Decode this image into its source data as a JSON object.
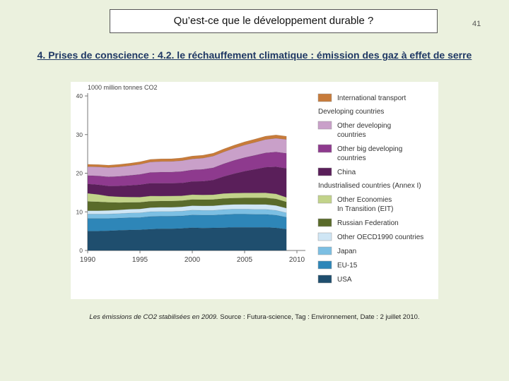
{
  "slide": {
    "title": "Qu’est-ce que le développement durable ?",
    "number": "41",
    "subtitle": "4. Prises de conscience : 4.2. le réchauffement climatique : émission des gaz à effet de serre",
    "caption_italic": "Les émissions de CO2 stabilisées en 2009.",
    "caption_source": " Source : Futura-science, Tag : Environnement, Date : 2 juillet 2010."
  },
  "chart_data": {
    "type": "area",
    "ylabel": "1000 million tonnes CO2",
    "ylim": [
      0,
      40
    ],
    "xlim": [
      1990,
      2010
    ],
    "yticks": [
      0,
      10,
      20,
      30,
      40
    ],
    "xticks": [
      1990,
      1995,
      2000,
      2005,
      2010
    ],
    "x": [
      1990,
      1991,
      1992,
      1993,
      1994,
      1995,
      1996,
      1997,
      1998,
      1999,
      2000,
      2001,
      2002,
      2003,
      2004,
      2005,
      2006,
      2007,
      2008,
      2009
    ],
    "stacked": true,
    "legend_groups": {
      "developing": "Developing countries",
      "industrialised": "Industrialised countries (Annex I)"
    },
    "series": [
      {
        "name": "USA",
        "group": "industrialised",
        "color": "#1f4e6e",
        "values": [
          5.0,
          5.0,
          5.1,
          5.2,
          5.3,
          5.35,
          5.5,
          5.6,
          5.6,
          5.7,
          5.9,
          5.8,
          5.85,
          5.9,
          6.0,
          6.0,
          5.95,
          6.0,
          5.85,
          5.5
        ]
      },
      {
        "name": "EU-15",
        "group": "industrialised",
        "color": "#2e86b8",
        "values": [
          3.3,
          3.3,
          3.2,
          3.2,
          3.2,
          3.2,
          3.3,
          3.25,
          3.3,
          3.25,
          3.3,
          3.35,
          3.3,
          3.4,
          3.4,
          3.4,
          3.4,
          3.35,
          3.3,
          3.1
        ]
      },
      {
        "name": "Japan",
        "group": "industrialised",
        "color": "#7cbfe3",
        "values": [
          1.1,
          1.1,
          1.15,
          1.15,
          1.2,
          1.2,
          1.25,
          1.25,
          1.2,
          1.25,
          1.25,
          1.25,
          1.25,
          1.3,
          1.3,
          1.3,
          1.3,
          1.3,
          1.25,
          1.15
        ]
      },
      {
        "name": "Other OECD1990 countries",
        "group": "industrialised",
        "color": "#cfe6f5",
        "values": [
          0.9,
          0.9,
          0.92,
          0.95,
          0.98,
          1.0,
          1.05,
          1.08,
          1.1,
          1.1,
          1.15,
          1.15,
          1.18,
          1.2,
          1.22,
          1.25,
          1.25,
          1.28,
          1.25,
          1.2
        ]
      },
      {
        "name": "Russian Federation",
        "group": "industrialised",
        "color": "#5a6b2a",
        "values": [
          2.4,
          2.3,
          2.1,
          1.9,
          1.75,
          1.7,
          1.65,
          1.6,
          1.6,
          1.6,
          1.6,
          1.6,
          1.6,
          1.65,
          1.65,
          1.65,
          1.7,
          1.7,
          1.7,
          1.6
        ]
      },
      {
        "name": "Other Economies\nIn Transition (EIT)",
        "group": "industrialised",
        "color": "#c2d38a",
        "values": [
          2.1,
          1.9,
          1.6,
          1.5,
          1.4,
          1.35,
          1.35,
          1.3,
          1.3,
          1.25,
          1.25,
          1.25,
          1.25,
          1.3,
          1.3,
          1.3,
          1.3,
          1.3,
          1.3,
          1.2
        ]
      },
      {
        "name": "China",
        "group": "developing",
        "color": "#5a1f5a",
        "values": [
          2.4,
          2.5,
          2.6,
          2.8,
          3.0,
          3.2,
          3.3,
          3.3,
          3.3,
          3.3,
          3.4,
          3.5,
          3.8,
          4.4,
          5.0,
          5.6,
          6.1,
          6.6,
          7.0,
          7.5
        ]
      },
      {
        "name": "Other big developing\ncountries",
        "group": "developing",
        "color": "#8e3a8e",
        "values": [
          2.2,
          2.3,
          2.4,
          2.5,
          2.6,
          2.7,
          2.8,
          2.9,
          2.9,
          3.0,
          3.0,
          3.1,
          3.2,
          3.3,
          3.45,
          3.55,
          3.65,
          3.75,
          3.85,
          3.9
        ]
      },
      {
        "name": "Other developing\ncountries",
        "group": "developing",
        "color": "#c9a0c9",
        "values": [
          2.3,
          2.35,
          2.4,
          2.45,
          2.5,
          2.6,
          2.7,
          2.75,
          2.75,
          2.8,
          2.85,
          2.9,
          3.0,
          3.05,
          3.15,
          3.25,
          3.35,
          3.45,
          3.55,
          3.6
        ]
      },
      {
        "name": "International transport",
        "group": "transport",
        "color": "#c77b3a",
        "values": [
          0.6,
          0.6,
          0.62,
          0.63,
          0.65,
          0.66,
          0.68,
          0.7,
          0.7,
          0.72,
          0.75,
          0.75,
          0.76,
          0.78,
          0.8,
          0.82,
          0.84,
          0.86,
          0.86,
          0.82
        ]
      }
    ]
  }
}
